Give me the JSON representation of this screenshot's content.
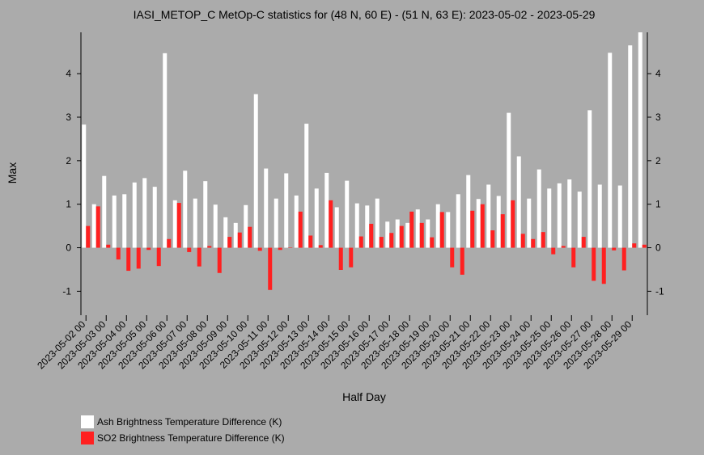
{
  "chart_data": {
    "type": "bar",
    "title": "IASI_METOP_C MetOp-C statistics for (48 N, 60 E) - (51 N, 63 E): 2023-05-02 - 2023-05-29",
    "xlabel": "Half Day",
    "ylabel": "Max",
    "ylim": [
      -1.55,
      4.95
    ],
    "yticks": [
      -1,
      0,
      1,
      2,
      3,
      4
    ],
    "date_labels": [
      "2023-05-02 00",
      "2023-05-03 00",
      "2023-05-04 00",
      "2023-05-05 00",
      "2023-05-06 00",
      "2023-05-07 00",
      "2023-05-08 00",
      "2023-05-09 00",
      "2023-05-10 00",
      "2023-05-11 00",
      "2023-05-12 00",
      "2023-05-13 00",
      "2023-05-14 00",
      "2023-05-15 00",
      "2023-05-16 00",
      "2023-05-17 00",
      "2023-05-18 00",
      "2023-05-19 00",
      "2023-05-20 00",
      "2023-05-21 00",
      "2023-05-22 00",
      "2023-05-23 00",
      "2023-05-24 00",
      "2023-05-25 00",
      "2023-05-26 00",
      "2023-05-27 00",
      "2023-05-28 00",
      "2023-05-29 00"
    ],
    "series": [
      {
        "name": "Ash Brightness Temperature Difference (K)",
        "color": "#ffffff",
        "values": [
          2.83,
          1.0,
          1.65,
          1.2,
          1.23,
          1.5,
          1.6,
          1.4,
          4.47,
          1.09,
          1.77,
          1.13,
          1.53,
          0.99,
          0.7,
          0.57,
          0.98,
          3.53,
          1.82,
          1.13,
          1.71,
          1.2,
          2.85,
          1.36,
          1.72,
          0.93,
          1.54,
          1.02,
          0.97,
          1.13,
          0.6,
          0.65,
          0.57,
          0.88,
          0.65,
          1.0,
          0.82,
          1.23,
          1.67,
          1.12,
          1.45,
          1.19,
          3.1,
          2.1,
          1.13,
          1.8,
          1.36,
          1.48,
          1.57,
          1.29,
          3.16,
          1.45,
          4.48,
          1.43,
          4.65,
          4.95
        ]
      },
      {
        "name": "SO2 Brightness Temperature Difference (K)",
        "color": "#ff2020",
        "values": [
          0.5,
          0.95,
          0.07,
          -0.27,
          -0.53,
          -0.48,
          -0.05,
          -0.42,
          0.2,
          1.03,
          -0.1,
          -0.43,
          0.04,
          -0.58,
          0.25,
          0.35,
          0.48,
          -0.07,
          -0.97,
          -0.05,
          0.01,
          0.83,
          0.28,
          0.06,
          1.09,
          -0.51,
          -0.45,
          0.26,
          0.55,
          0.25,
          0.34,
          0.5,
          0.83,
          0.57,
          0.24,
          0.82,
          -0.45,
          -0.62,
          0.85,
          1.0,
          0.4,
          0.77,
          1.09,
          0.32,
          0.2,
          0.36,
          -0.15,
          0.04,
          -0.45,
          0.25,
          -0.76,
          -0.83,
          -0.06,
          -0.52,
          0.1,
          0.07
        ]
      }
    ],
    "grid": false,
    "legend_position": "bottom-left"
  }
}
